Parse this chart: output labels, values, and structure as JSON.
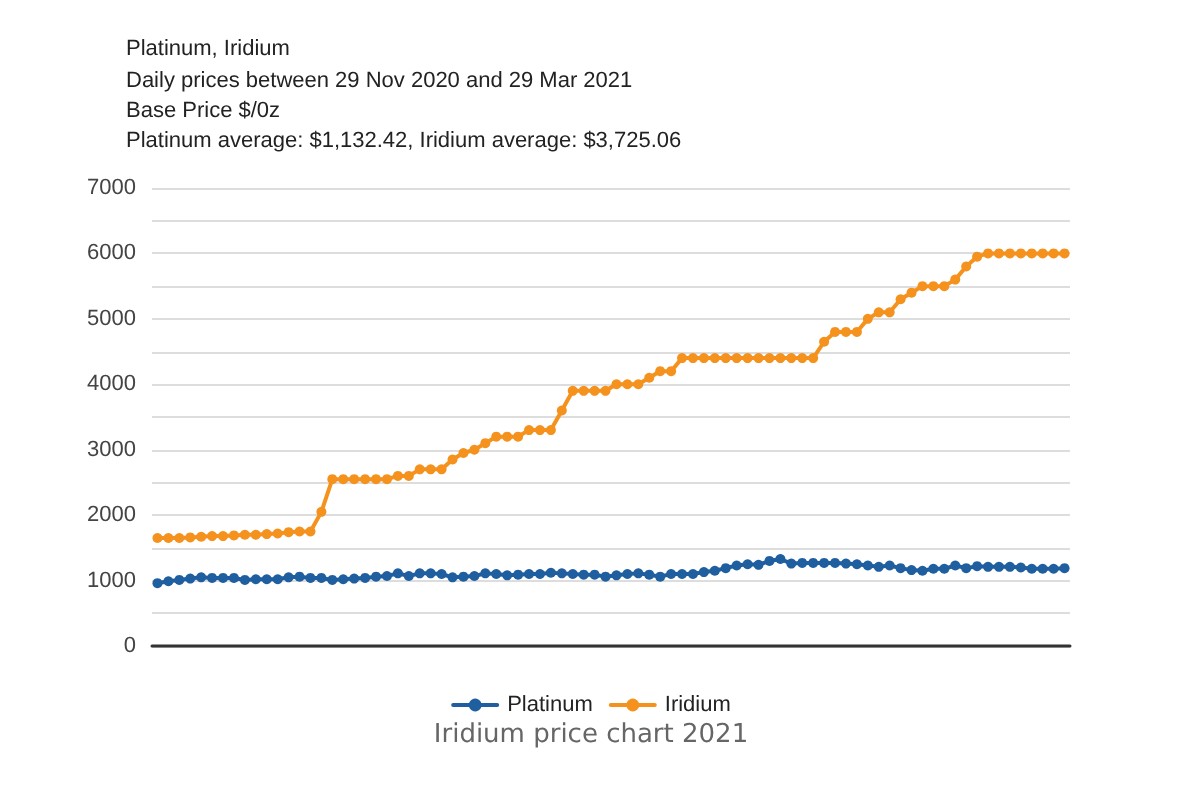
{
  "chart_data": {
    "type": "line",
    "title": "Platinum, Iridium",
    "subtitle": "Daily prices between 29 Nov 2020 and 29 Mar 2021\nBase Price $/0z\nPlatinum average: $1,132.42, Iridium average: $3,725.06",
    "annotations": [
      "Iridium price chart 2021"
    ],
    "categories": [
      null,
      null,
      null,
      null,
      null,
      null,
      null,
      null,
      null,
      null,
      null,
      null,
      null,
      null,
      null,
      null,
      null,
      null,
      null,
      null,
      null,
      null,
      null,
      null,
      null,
      null,
      null,
      null,
      null,
      null,
      null,
      null,
      null,
      null,
      null,
      null,
      null,
      null,
      null,
      null,
      null,
      null,
      null,
      null,
      null,
      null,
      null,
      null,
      null,
      null,
      null,
      null,
      null,
      null,
      null,
      null,
      null,
      null,
      null,
      null,
      null,
      null,
      null,
      null,
      null,
      null,
      null,
      null,
      null,
      null,
      null,
      null,
      null,
      null,
      null,
      null,
      null,
      null,
      null,
      null,
      null,
      null,
      null,
      null
    ],
    "series": [
      {
        "name": "Platinum",
        "color": "#1f5fa0",
        "values": [
          960,
          990,
          1010,
          1030,
          1050,
          1040,
          1040,
          1040,
          1010,
          1020,
          1020,
          1020,
          1050,
          1060,
          1040,
          1040,
          1010,
          1020,
          1030,
          1040,
          1060,
          1070,
          1110,
          1070,
          1110,
          1110,
          1100,
          1050,
          1060,
          1070,
          1110,
          1100,
          1080,
          1090,
          1100,
          1100,
          1120,
          1110,
          1100,
          1090,
          1090,
          1060,
          1080,
          1100,
          1110,
          1090,
          1060,
          1100,
          1100,
          1100,
          1130,
          1150,
          1190,
          1230,
          1250,
          1240,
          1300,
          1330,
          1260,
          1270,
          1270,
          1270,
          1270,
          1260,
          1250,
          1230,
          1210,
          1230,
          1190,
          1160,
          1150,
          1180,
          1180,
          1230,
          1190,
          1220,
          1210,
          1210,
          1210,
          1200,
          1180,
          1180,
          1180,
          1190
        ]
      },
      {
        "name": "Iridium",
        "color": "#f5921e",
        "values": [
          1650,
          1650,
          1650,
          1660,
          1670,
          1680,
          1680,
          1690,
          1700,
          1700,
          1710,
          1720,
          1740,
          1750,
          1750,
          2050,
          2550,
          2550,
          2550,
          2550,
          2550,
          2550,
          2600,
          2600,
          2700,
          2700,
          2700,
          2850,
          2950,
          3000,
          3100,
          3200,
          3200,
          3200,
          3300,
          3300,
          3300,
          3600,
          3900,
          3900,
          3900,
          3900,
          4000,
          4000,
          4000,
          4100,
          4200,
          4200,
          4400,
          4400,
          4400,
          4400,
          4400,
          4400,
          4400,
          4400,
          4400,
          4400,
          4400,
          4400,
          4400,
          4650,
          4800,
          4800,
          4800,
          5000,
          5100,
          5100,
          5300,
          5400,
          5500,
          5500,
          5500,
          5600,
          5800,
          5950,
          6000,
          6000,
          6000,
          6000,
          6000,
          6000,
          6000,
          6000
        ]
      }
    ],
    "ylim": [
      0,
      7000
    ],
    "yticks": [
      0,
      {
        "value": 500,
        "label": null
      },
      1000,
      {
        "value": 1500,
        "label": null
      },
      2000,
      {
        "value": 2500,
        "label": null
      },
      3000,
      {
        "value": 3500,
        "label": null
      },
      4000,
      {
        "value": 4500,
        "label": null
      },
      5000,
      {
        "value": 5500,
        "label": null
      },
      6000,
      {
        "value": 6500,
        "label": null
      },
      7000
    ],
    "grid": "y",
    "legend": "bottom",
    "marker": "circle",
    "line_style": "solid"
  }
}
